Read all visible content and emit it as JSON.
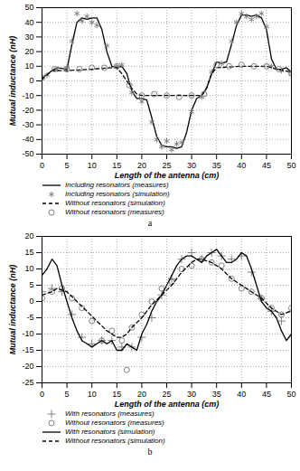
{
  "chart_data": [
    {
      "type": "line",
      "caption": "a",
      "x_label": "Length of the antenna (cm)",
      "y_label": "Mutual inductance (nH)",
      "xlim": [
        0,
        50
      ],
      "xticks": [
        0,
        5,
        10,
        15,
        20,
        25,
        30,
        35,
        40,
        45,
        50
      ],
      "ylim": [
        -50,
        50
      ],
      "yticks": [
        -50,
        -40,
        -30,
        -20,
        -10,
        0,
        10,
        20,
        30,
        40,
        50
      ],
      "grid": true,
      "legend": "bottom",
      "series": [
        {
          "name": "Including resonators (measures)",
          "type": "line",
          "line_style": "solid",
          "color": "#000000",
          "x": [
            0,
            2,
            3,
            5,
            6,
            7,
            8,
            9,
            10,
            11,
            12,
            13,
            14,
            15,
            16,
            17,
            18,
            19,
            20,
            21,
            22,
            23,
            24,
            25,
            26,
            27,
            28,
            29,
            30,
            31,
            32,
            33,
            34,
            35,
            36,
            37,
            38,
            39,
            40,
            41,
            42,
            43,
            44,
            45,
            46,
            47,
            48,
            49,
            50
          ],
          "values": [
            2,
            7,
            9,
            8,
            25,
            40,
            43,
            42,
            43,
            43,
            35,
            20,
            10,
            9,
            10,
            5,
            -7,
            -12,
            -12,
            -13,
            -25,
            -38,
            -44,
            -45,
            -45,
            -46,
            -45,
            -35,
            -20,
            -12,
            -10,
            -5,
            5,
            13,
            12,
            13,
            25,
            38,
            45,
            45,
            44,
            45,
            43,
            35,
            15,
            8,
            8,
            9,
            6
          ]
        },
        {
          "name": "Including resonators (simulation)",
          "type": "scatter",
          "marker": "asterisk",
          "color": "#808080",
          "x": [
            1,
            3,
            5,
            6,
            7,
            8,
            9,
            10,
            11,
            13,
            15,
            16,
            18,
            20,
            22,
            23,
            24,
            25,
            26,
            27,
            28,
            30,
            32,
            34,
            36,
            38,
            39,
            40,
            41,
            42,
            43,
            44,
            45,
            46,
            48,
            50
          ],
          "values": [
            4,
            8,
            9,
            27,
            46,
            41,
            44,
            40,
            38,
            24,
            10,
            11,
            -8,
            -14,
            -28,
            -40,
            -45,
            -41,
            -47,
            -43,
            -42,
            -21,
            -11,
            6,
            12,
            27,
            40,
            46,
            44,
            42,
            44,
            46,
            37,
            10,
            7,
            5
          ]
        },
        {
          "name": "Without resonators (simulation)",
          "type": "line",
          "line_style": "dashed",
          "color": "#000000",
          "x": [
            0,
            2,
            5,
            10,
            14,
            15,
            16,
            18,
            19,
            20,
            25,
            30,
            32,
            33,
            34,
            35,
            40,
            45,
            47,
            50
          ],
          "values": [
            1,
            7,
            7,
            8,
            9,
            9,
            5,
            -5,
            -9,
            -10,
            -10,
            -10,
            -10,
            -5,
            5,
            9,
            10,
            10,
            8,
            6
          ]
        },
        {
          "name": "Without resonators (measures)",
          "type": "scatter",
          "marker": "circle",
          "color": "#808080",
          "x": [
            0,
            2.5,
            5,
            7.5,
            10,
            12.5,
            15,
            17.5,
            20,
            22.5,
            25,
            27.5,
            30,
            32.5,
            35,
            37.5,
            40,
            42.5,
            45,
            47.5,
            50
          ],
          "values": [
            2,
            8,
            8,
            8,
            9,
            9,
            10,
            -3,
            -10,
            -9,
            -10,
            -11,
            -10,
            -9,
            11,
            10,
            11,
            10,
            10,
            8,
            5
          ]
        }
      ]
    },
    {
      "type": "line",
      "caption": "b",
      "x_label": "Length of the antenna (cm)",
      "y_label": "Mutual inductance (nH)",
      "xlim": [
        0,
        50
      ],
      "xticks": [
        0,
        5,
        10,
        15,
        20,
        25,
        30,
        35,
        40,
        45,
        50
      ],
      "ylim": [
        -25,
        20
      ],
      "yticks": [
        -25,
        -20,
        -15,
        -10,
        -5,
        0,
        5,
        10,
        15,
        20
      ],
      "grid": true,
      "legend": "bottom",
      "series": [
        {
          "name": "With resonators (measures)",
          "type": "scatter",
          "marker": "plus",
          "color": "#808080",
          "x": [
            0,
            2,
            4,
            6,
            8,
            10,
            12,
            14,
            16,
            18,
            20,
            22,
            24,
            26,
            28,
            30,
            32,
            34,
            36,
            38,
            40,
            42,
            44,
            46,
            48,
            50
          ],
          "values": [
            3,
            4,
            3,
            -4,
            -11,
            -13,
            -12,
            -12,
            -14,
            -14,
            -11,
            -5,
            2,
            7,
            13,
            15,
            13,
            15,
            14,
            13,
            14,
            9,
            1,
            -3,
            -6,
            -3
          ]
        },
        {
          "name": "Without resonators (measures)",
          "type": "scatter",
          "marker": "circle",
          "color": "#808080",
          "x": [
            0,
            2,
            4,
            6,
            8,
            10,
            12,
            14,
            16,
            17,
            18,
            20,
            22,
            24,
            26,
            28,
            30,
            32,
            34,
            36,
            38,
            40,
            42,
            44,
            46,
            48,
            50
          ],
          "values": [
            1,
            3,
            4,
            1,
            -2,
            -6,
            -12,
            -9,
            -12,
            -21,
            -8,
            -4,
            0,
            4,
            6,
            10,
            11,
            13,
            12,
            11,
            7,
            4,
            3,
            1,
            -2,
            -4,
            -2
          ]
        },
        {
          "name": "With resonators (simulation)",
          "type": "line",
          "line_style": "solid",
          "color": "#000000",
          "x": [
            0,
            1,
            2,
            3,
            4,
            5,
            6,
            7,
            8,
            9,
            10,
            11,
            12,
            13,
            14,
            15,
            16,
            17,
            18,
            19,
            20,
            21,
            22,
            23,
            24,
            25,
            26,
            27,
            28,
            29,
            30,
            31,
            32,
            33,
            34,
            35,
            36,
            37,
            38,
            39,
            40,
            41,
            42,
            43,
            44,
            45,
            46,
            47,
            48,
            49,
            50
          ],
          "values": [
            8,
            10,
            13,
            11,
            5,
            0,
            -5,
            -9,
            -12,
            -13,
            -14,
            -13,
            -12,
            -13,
            -12,
            -15,
            -15,
            -13,
            -14,
            -15,
            -10,
            -7,
            -3,
            0,
            2,
            5,
            8,
            11,
            13,
            14,
            14,
            13,
            12,
            14,
            15,
            16,
            14,
            12,
            12,
            13,
            15,
            14,
            10,
            5,
            0,
            -2,
            -3,
            -5,
            -9,
            -12,
            -10
          ]
        },
        {
          "name": "Without resonators (simulation)",
          "type": "line",
          "line_style": "dashed",
          "color": "#000000",
          "x": [
            0,
            2,
            3,
            5,
            7,
            9,
            11,
            13,
            15,
            16,
            17,
            18,
            20,
            22,
            24,
            26,
            28,
            30,
            31,
            32,
            34,
            36,
            38,
            40,
            42,
            44,
            46,
            48,
            50
          ],
          "values": [
            2,
            3,
            4,
            3,
            0,
            -3,
            -6,
            -9,
            -11,
            -11,
            -10,
            -8,
            -5,
            -1,
            2,
            5,
            9,
            12,
            13,
            13,
            12,
            10,
            7,
            5,
            3,
            1,
            -2,
            -4,
            -3
          ]
        }
      ]
    }
  ]
}
